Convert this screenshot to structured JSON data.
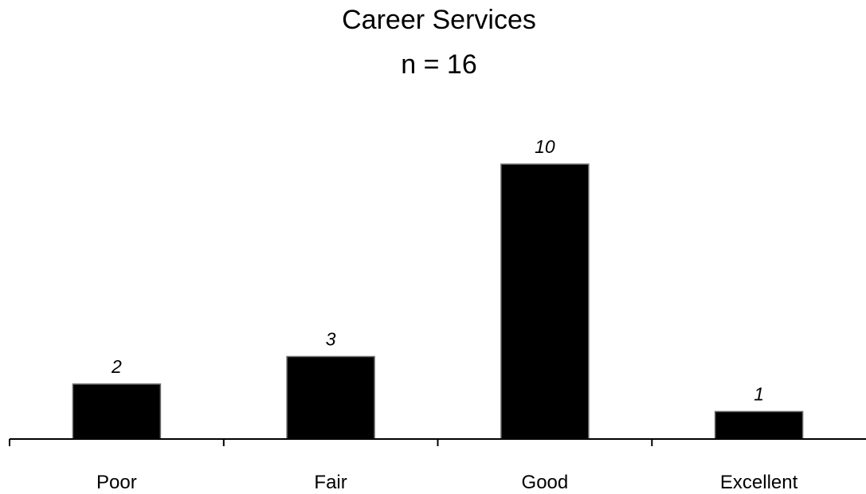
{
  "chart_data": {
    "type": "bar",
    "title": "Career Services",
    "subtitle": "n = 16",
    "xlabel": "",
    "ylabel": "",
    "categories": [
      "Poor",
      "Fair",
      "Good",
      "Excellent"
    ],
    "values": [
      2,
      3,
      10,
      1
    ],
    "data_labels": [
      "2",
      "3",
      "10",
      "1"
    ],
    "ylim": [
      0,
      11
    ],
    "grid": false,
    "legend": "none",
    "bar_color": "#000000",
    "axis_color": "#000000"
  }
}
